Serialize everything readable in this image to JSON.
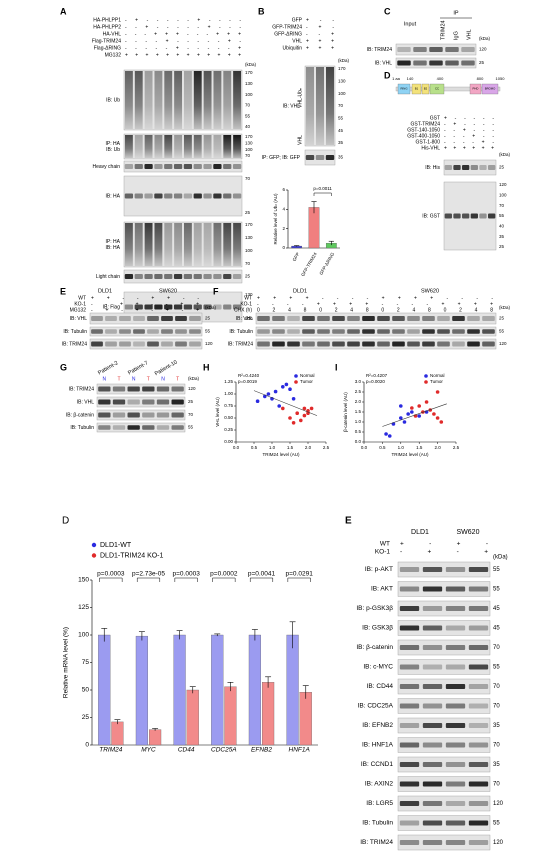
{
  "top": {
    "A": {
      "letter": "A",
      "kda": "(kDa)",
      "conditions": [
        {
          "name": "HA-PHLPP1",
          "signs": "- + - - - - - + - - - -"
        },
        {
          "name": "HA-PHLPP2",
          "signs": "- - + - - - - - + - - -"
        },
        {
          "name": "HA-VHL",
          "signs": "- - - + + + - - - + + +"
        },
        {
          "name": "Flag-TRIM24",
          "signs": "- - - - + - - - - - + -"
        },
        {
          "name": "Flag-ΔRING",
          "signs": "- - - - - + - - - - - +"
        },
        {
          "name": "MG132",
          "signs": "+ + + + + + + + + + + +"
        }
      ],
      "blots": [
        {
          "labels": [
            "IB: Ub"
          ],
          "markers": [
            "170",
            "130",
            "100",
            "70",
            "55",
            "40"
          ]
        },
        {
          "labels": [
            "IP: HA",
            "IB: Ub"
          ],
          "markers": [
            "170",
            "130",
            "100",
            "70"
          ]
        },
        {
          "labels": [
            "Heavy chain"
          ],
          "markers": []
        },
        {
          "labels": [
            "IB: HA"
          ],
          "markers": [
            "70",
            "25"
          ]
        },
        {
          "labels": [
            "IP: HA",
            "IB: HA"
          ],
          "markers": [
            "170",
            "130",
            "100",
            "70"
          ]
        },
        {
          "labels": [
            "Light chain"
          ],
          "markers": [
            "25"
          ]
        },
        {
          "labels": [
            "IB: Flag"
          ],
          "markers": [
            "130",
            "100"
          ]
        }
      ]
    },
    "B": {
      "letter": "B",
      "kda": "(kDa)",
      "annotations": [
        "VHL-Ubₙ",
        "VHL"
      ],
      "conditions": [
        {
          "name": "GFP",
          "signs": "+ - -"
        },
        {
          "name": "GFP-TRIM24",
          "signs": "- + -"
        },
        {
          "name": "GFP-ΔRING",
          "signs": "- - +"
        },
        {
          "name": "VHL",
          "signs": "+ + +"
        },
        {
          "name": "Ubiquitin",
          "signs": "+ + +"
        }
      ],
      "blots": [
        {
          "labels": [
            "IB: VHL"
          ],
          "markers": [
            "170",
            "130",
            "100",
            "70",
            "55",
            "45",
            "35"
          ]
        },
        {
          "labels": [
            "IP: GFP; IB: GFP"
          ],
          "markers": [
            "35"
          ]
        }
      ],
      "chart": {
        "type": "bar",
        "ylabel": "Relative level of Ubₙ (AU)",
        "categories": [
          "GFP",
          "GFP-TRIM24",
          "GFP-ΔRING"
        ],
        "values": [
          0.2,
          4.2,
          0.5
        ],
        "errors": [
          0.05,
          0.6,
          0.2
        ],
        "colors": [
          "#3b3bd6",
          "#f07f7f",
          "#5fc95f"
        ],
        "ylim": [
          0,
          6
        ],
        "yticks": [
          0,
          2,
          4,
          6
        ],
        "p_label": "p=0.0011"
      }
    },
    "C": {
      "letter": "C",
      "kda": "(kDa)",
      "headers": [
        "Input",
        "IP",
        "TRIM24",
        "IgG",
        "VHL"
      ],
      "blots": [
        {
          "labels": [
            "IB: TRIM24"
          ],
          "markers": [
            "120"
          ]
        },
        {
          "labels": [
            "IB: VHL"
          ],
          "markers": [
            "25"
          ]
        }
      ]
    },
    "D": {
      "letter": "D",
      "kda": "(kDa)",
      "positions": [
        "1 aa",
        "140",
        "400",
        "800",
        "1050"
      ],
      "domains": [
        "RING",
        "B1",
        "B2",
        "CC",
        "PHD",
        "BROMO"
      ],
      "conditions": [
        {
          "name": "GST",
          "signs": "+ - - - - -"
        },
        {
          "name": "GST-TRIM24",
          "signs": "- + - - - -"
        },
        {
          "name": "GST-140-1050",
          "signs": "- - + - - -"
        },
        {
          "name": "GST-400-1050",
          "signs": "- - - + - -"
        },
        {
          "name": "GST-1-800",
          "signs": "- - - - + -"
        },
        {
          "name": "His-VHL",
          "signs": "+ + + + + +"
        }
      ],
      "blots": [
        {
          "labels": [
            "IB: His"
          ],
          "markers": [
            "25"
          ]
        },
        {
          "labels": [
            "IB: GST"
          ],
          "markers": [
            "120",
            "100",
            "70",
            "55",
            "40",
            "35",
            "25"
          ]
        }
      ]
    },
    "E": {
      "letter": "E",
      "kda": "(kDa)",
      "headers": [
        "DLD1",
        "SW620"
      ],
      "conditions": [
        {
          "name": "WT",
          "signs": "+ + - - + + - -"
        },
        {
          "name": "KO-1",
          "signs": "- - + + - - + +"
        },
        {
          "name": "MG132",
          "signs": "- + - + - + - +"
        }
      ],
      "blots": [
        {
          "labels": [
            "IB: VHL"
          ],
          "markers": [
            "25"
          ]
        },
        {
          "labels": [
            "IB: Tubulin"
          ],
          "markers": [
            "55"
          ]
        },
        {
          "labels": [
            "IB: TRIM24"
          ],
          "markers": [
            "120"
          ]
        }
      ]
    },
    "F": {
      "letter": "F",
      "kda": "(kDa)",
      "headers": [
        "DLD1",
        "SW620"
      ],
      "conditions": [
        {
          "name": "WT",
          "signs": "+ + + + - - - - + + + + - - - -"
        },
        {
          "name": "KO-1",
          "signs": "- - - - + + + + - - - - + + + +"
        },
        {
          "name": "CHX (h)",
          "signs": "0 2 4 8 0 2 4 8 0 2 4 8 0 2 4 8"
        }
      ],
      "blots": [
        {
          "labels": [
            "IB: VHL"
          ],
          "markers": [
            "25"
          ]
        },
        {
          "labels": [
            "IB: Tubulin"
          ],
          "markers": [
            "55"
          ]
        },
        {
          "labels": [
            "IB: TRIM24"
          ],
          "markers": [
            "120"
          ]
        }
      ]
    },
    "G": {
      "letter": "G",
      "kda": "(kDa)",
      "headers": [
        "Patient-2",
        "Patient-7",
        "Patient-10"
      ],
      "lanes": [
        "N",
        "T",
        "N",
        "T",
        "N",
        "T"
      ],
      "blots": [
        {
          "labels": [
            "IB: TRIM24"
          ],
          "markers": [
            "120"
          ]
        },
        {
          "labels": [
            "IB: VHL"
          ],
          "markers": [
            "25"
          ]
        },
        {
          "labels": [
            "IB: β-catenin"
          ],
          "markers": [
            "70"
          ]
        },
        {
          "labels": [
            "IB: Tubulin"
          ],
          "markers": [
            "55"
          ]
        }
      ]
    },
    "H": {
      "letter": "H",
      "chart": {
        "type": "scatter",
        "r2_label": "R²=0.4240",
        "p_label": "p=0.0019",
        "xlabel": "TRIM24 level (AU)",
        "ylabel": "VHL level (AU)",
        "xlim": [
          0,
          2.5
        ],
        "xticks": [
          {
            "value": 0,
            "label": "0.0"
          },
          {
            "value": 0.5,
            "label": "0.5"
          },
          {
            "value": 1,
            "label": "1.0"
          },
          {
            "value": 1.5,
            "label": "1.5"
          },
          {
            "value": 2,
            "label": "2.0"
          },
          {
            "value": 2.5,
            "label": "2.5"
          }
        ],
        "ylim": [
          0,
          1.25
        ],
        "yticks": [
          {
            "value": 0,
            "label": "0.00"
          },
          {
            "value": 0.25,
            "label": "0.25"
          },
          {
            "value": 0.5,
            "label": "0.50"
          },
          {
            "value": 0.75,
            "label": "0.75"
          },
          {
            "value": 1,
            "label": "1.00"
          },
          {
            "value": 1.25,
            "label": "1.25"
          }
        ],
        "series": [
          {
            "name": "Normal",
            "color": "#2a2ae0",
            "x": [
              0.6,
              0.8,
              0.9,
              1.0,
              1.1,
              1.2,
              1.3,
              1.4,
              1.5,
              1.6
            ],
            "y": [
              0.85,
              0.95,
              1.0,
              0.9,
              1.05,
              0.75,
              1.15,
              1.2,
              1.1,
              0.9
            ]
          },
          {
            "name": "Tumor",
            "color": "#e02a2a",
            "x": [
              1.3,
              1.5,
              1.6,
              1.7,
              1.8,
              1.9,
              1.9,
              2.0,
              2.0,
              2.1
            ],
            "y": [
              0.7,
              0.5,
              0.4,
              0.6,
              0.45,
              0.7,
              0.55,
              0.65,
              0.6,
              0.7
            ]
          }
        ]
      }
    },
    "I": {
      "letter": "I",
      "chart": {
        "type": "scatter",
        "r2_label": "R²=0.4207",
        "p_label": "p=0.0020",
        "xlabel": "TRIM24 level (AU)",
        "ylabel": "β-catenin level (AU)",
        "xlim": [
          0,
          2.5
        ],
        "xticks": [
          {
            "value": 0,
            "label": "0.0"
          },
          {
            "value": 0.5,
            "label": "0.5"
          },
          {
            "value": 1,
            "label": "1.0"
          },
          {
            "value": 1.5,
            "label": "1.5"
          },
          {
            "value": 2,
            "label": "2.0"
          },
          {
            "value": 2.5,
            "label": "2.5"
          }
        ],
        "ylim": [
          0,
          3
        ],
        "yticks": [
          {
            "value": 0,
            "label": "0.0"
          },
          {
            "value": 0.5,
            "label": "0.5"
          },
          {
            "value": 1,
            "label": "1.0"
          },
          {
            "value": 1.5,
            "label": "1.5"
          },
          {
            "value": 2,
            "label": "2.0"
          },
          {
            "value": 2.5,
            "label": "2.5"
          },
          {
            "value": 3,
            "label": "3.0"
          }
        ],
        "series": [
          {
            "name": "Normal",
            "color": "#2a2ae0",
            "x": [
              0.6,
              0.7,
              0.8,
              1.0,
              1.0,
              1.1,
              1.2,
              1.3,
              1.5,
              1.7
            ],
            "y": [
              0.4,
              0.3,
              0.9,
              1.2,
              1.8,
              1.0,
              1.4,
              1.5,
              1.3,
              1.5
            ]
          },
          {
            "name": "Tumor",
            "color": "#e02a2a",
            "x": [
              1.3,
              1.4,
              1.5,
              1.6,
              1.7,
              1.8,
              1.9,
              2.0,
              2.0,
              2.1
            ],
            "y": [
              1.7,
              1.3,
              1.8,
              1.5,
              2.0,
              1.6,
              1.4,
              1.2,
              2.5,
              1.0
            ]
          }
        ]
      }
    }
  },
  "bottom": {
    "D": {
      "letter": "D",
      "chart": {
        "type": "bar",
        "ylabel": "Relative mRNA level (%)",
        "categories": [
          "TRIM24",
          "MYC",
          "CD44",
          "CDC25A",
          "EFNB2",
          "HNF1A"
        ],
        "p_labels": [
          "p=0.0003",
          "p=2.73e-05",
          "p=0.0003",
          "p=0.0002",
          "p=0.0041",
          "p=0.0291"
        ],
        "ylim": [
          0,
          150
        ],
        "yticks": [
          0,
          25,
          50,
          75,
          100,
          125,
          150
        ],
        "series": [
          {
            "name": "DLD1-WT",
            "color": "#9b9bf0",
            "dot": "#2a2ae0",
            "values": [
              100,
              99,
              100,
              100,
              100,
              100
            ],
            "errors": [
              6,
              4,
              4,
              1,
              5,
              12
            ]
          },
          {
            "name": "DLD1-TRIM24 KO-1",
            "color": "#f28a8a",
            "dot": "#e02a2a",
            "values": [
              21,
              14,
              50,
              53,
              57,
              48
            ],
            "errors": [
              2,
              1,
              3,
              4,
              5,
              6
            ]
          }
        ]
      }
    },
    "E": {
      "letter": "E",
      "kda": "(kDa)",
      "headers": [
        "DLD1",
        "SW620"
      ],
      "conditions": [
        {
          "name": "WT",
          "signs": "+ - + -"
        },
        {
          "name": "KO-1",
          "signs": "- + - +"
        }
      ],
      "blots": [
        {
          "labels": [
            "IB: p-AKT"
          ],
          "markers": [
            "55"
          ]
        },
        {
          "labels": [
            "IB: AKT"
          ],
          "markers": [
            "55"
          ]
        },
        {
          "labels": [
            "IB: p-GSK3β"
          ],
          "markers": [
            "45"
          ]
        },
        {
          "labels": [
            "IB: GSK3β"
          ],
          "markers": [
            "45"
          ]
        },
        {
          "labels": [
            "IB: β-catenin"
          ],
          "markers": [
            "70"
          ]
        },
        {
          "labels": [
            "IB: c-MYC"
          ],
          "markers": [
            "55"
          ]
        },
        {
          "labels": [
            "IB: CD44"
          ],
          "markers": [
            "70"
          ]
        },
        {
          "labels": [
            "IB: CDC25A"
          ],
          "markers": [
            "70"
          ]
        },
        {
          "labels": [
            "IB: EFNB2"
          ],
          "markers": [
            "35"
          ]
        },
        {
          "labels": [
            "IB: HNF1A"
          ],
          "markers": [
            "70"
          ]
        },
        {
          "labels": [
            "IB: CCND1"
          ],
          "markers": [
            "35"
          ]
        },
        {
          "labels": [
            "IB: AXIN2"
          ],
          "markers": [
            "70"
          ]
        },
        {
          "labels": [
            "IB: LGR5"
          ],
          "markers": [
            "120"
          ]
        },
        {
          "labels": [
            "IB: Tubulin"
          ],
          "markers": [
            "55"
          ]
        },
        {
          "labels": [
            "IB: TRIM24"
          ],
          "markers": [
            "120"
          ]
        }
      ]
    }
  }
}
